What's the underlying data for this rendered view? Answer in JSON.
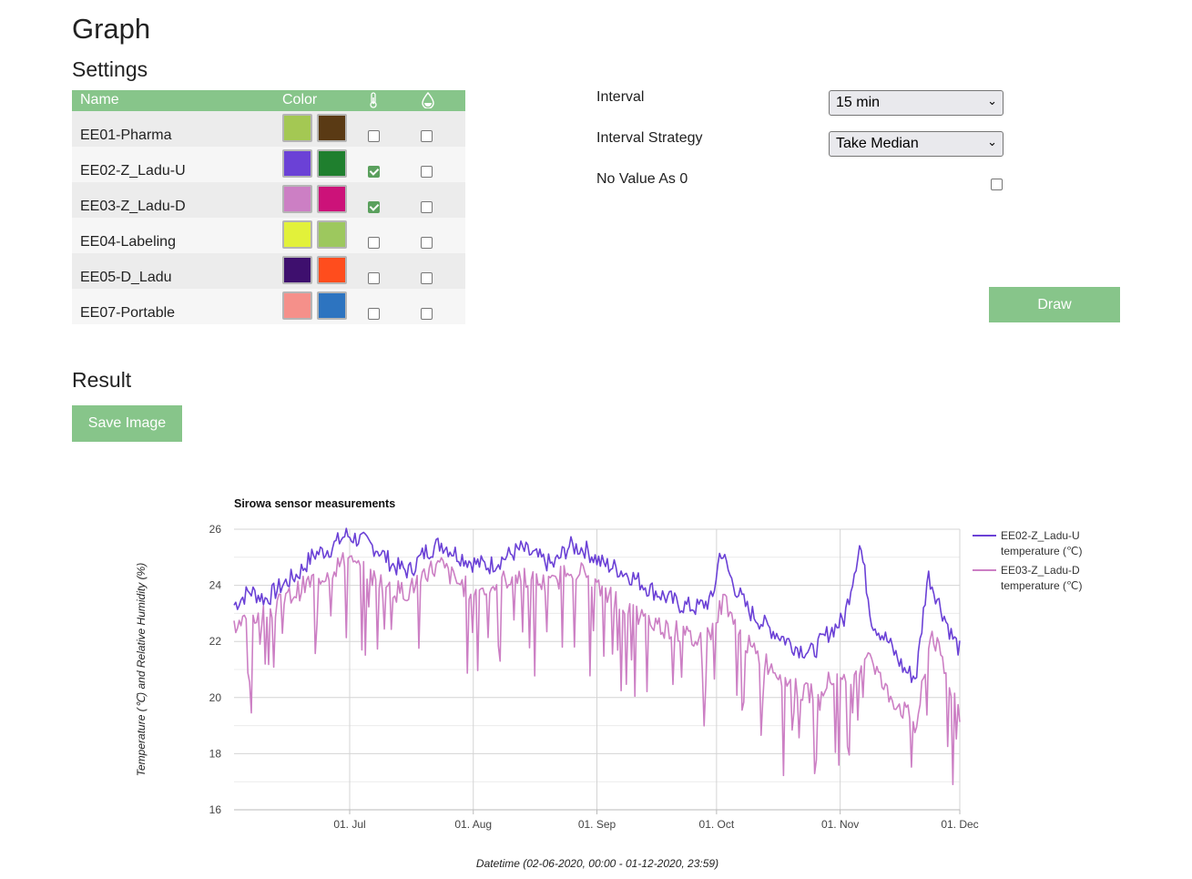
{
  "page": {
    "title": "Graph",
    "settings_heading": "Settings",
    "result_heading": "Result"
  },
  "table": {
    "headers": {
      "name": "Name",
      "color": "Color",
      "temp_icon": "thermometer-icon",
      "humidity_icon": "droplet-icon"
    },
    "rows": [
      {
        "name": "EE01-Pharma",
        "temp_color": "#a4c853",
        "hum_color": "#5a3a14",
        "temp_checked": false,
        "hum_checked": false
      },
      {
        "name": "EE02-Z_Ladu-U",
        "temp_color": "#6b41d6",
        "hum_color": "#1f7f2e",
        "temp_checked": true,
        "hum_checked": false
      },
      {
        "name": "EE03-Z_Ladu-D",
        "temp_color": "#cc7fc4",
        "hum_color": "#cc1279",
        "temp_checked": true,
        "hum_checked": false
      },
      {
        "name": "EE04-Labeling",
        "temp_color": "#e2f13a",
        "hum_color": "#9dc85e",
        "temp_checked": false,
        "hum_checked": false
      },
      {
        "name": "EE05-D_Ladu",
        "temp_color": "#3e0f6e",
        "hum_color": "#ff4d1d",
        "temp_checked": false,
        "hum_checked": false
      },
      {
        "name": "EE07-Portable",
        "temp_color": "#f5908a",
        "hum_color": "#2d74c0",
        "temp_checked": false,
        "hum_checked": false
      }
    ]
  },
  "form": {
    "interval_label": "Interval",
    "interval_value": "15 min",
    "strategy_label": "Interval Strategy",
    "strategy_value": "Take Median",
    "novalue_label": "No Value As 0",
    "novalue_checked": false,
    "draw_label": "Draw"
  },
  "save_label": "Save Image",
  "chart_data": {
    "type": "line",
    "title": "Sirowa sensor measurements",
    "xlabel": "Datetime (02-06-2020, 00:00 - 01-12-2020, 23:59)",
    "ylabel": "Temperature (℃) and Relative Humidity (%)",
    "x_ticks": [
      "01. Jul",
      "01. Aug",
      "01. Sep",
      "01. Oct",
      "01. Nov",
      "01. Dec"
    ],
    "x_tick_dates": [
      "2020-07-01",
      "2020-08-01",
      "2020-09-01",
      "2020-10-01",
      "2020-11-01",
      "2020-12-01"
    ],
    "xlim": [
      "2020-06-02",
      "2020-12-01"
    ],
    "ylim": [
      16,
      26
    ],
    "y_ticks": [
      16,
      18,
      20,
      22,
      24,
      26
    ],
    "grid": true,
    "legend_position": "right",
    "series": [
      {
        "name": "EE02-Z_Ladu-U temperature (℃)",
        "color": "#6b41d6",
        "points": [
          [
            "2020-06-02",
            23.3
          ],
          [
            "2020-06-06",
            23.8
          ],
          [
            "2020-06-10",
            23.5
          ],
          [
            "2020-06-14",
            24.0
          ],
          [
            "2020-06-18",
            24.4
          ],
          [
            "2020-06-22",
            25.1
          ],
          [
            "2020-06-26",
            25.3
          ],
          [
            "2020-06-30",
            25.8
          ],
          [
            "2020-07-04",
            25.6
          ],
          [
            "2020-07-08",
            25.3
          ],
          [
            "2020-07-12",
            24.7
          ],
          [
            "2020-07-16",
            24.5
          ],
          [
            "2020-07-20",
            25.2
          ],
          [
            "2020-07-24",
            25.5
          ],
          [
            "2020-07-28",
            25.1
          ],
          [
            "2020-08-01",
            24.8
          ],
          [
            "2020-08-05",
            24.7
          ],
          [
            "2020-08-09",
            25.0
          ],
          [
            "2020-08-13",
            25.3
          ],
          [
            "2020-08-17",
            25.0
          ],
          [
            "2020-08-21",
            24.7
          ],
          [
            "2020-08-25",
            25.4
          ],
          [
            "2020-08-29",
            25.3
          ],
          [
            "2020-09-02",
            24.8
          ],
          [
            "2020-09-06",
            24.6
          ],
          [
            "2020-09-10",
            24.3
          ],
          [
            "2020-09-14",
            23.9
          ],
          [
            "2020-09-18",
            23.6
          ],
          [
            "2020-09-22",
            23.3
          ],
          [
            "2020-09-26",
            23.2
          ],
          [
            "2020-09-30",
            23.5
          ],
          [
            "2020-10-02",
            25.3
          ],
          [
            "2020-10-05",
            24.1
          ],
          [
            "2020-10-09",
            23.1
          ],
          [
            "2020-10-13",
            22.6
          ],
          [
            "2020-10-17",
            22.2
          ],
          [
            "2020-10-21",
            21.8
          ],
          [
            "2020-10-25",
            21.6
          ],
          [
            "2020-10-29",
            22.3
          ],
          [
            "2020-11-02",
            22.8
          ],
          [
            "2020-11-06",
            25.5
          ],
          [
            "2020-11-09",
            22.7
          ],
          [
            "2020-11-13",
            22.0
          ],
          [
            "2020-11-17",
            21.0
          ],
          [
            "2020-11-20",
            20.7
          ],
          [
            "2020-11-23",
            24.4
          ],
          [
            "2020-11-26",
            23.3
          ],
          [
            "2020-11-29",
            22.2
          ],
          [
            "2020-12-01",
            21.7
          ]
        ]
      },
      {
        "name": "EE03-Z_Ladu-D temperature (℃)",
        "color": "#cc7fc4",
        "points": [
          [
            "2020-06-02",
            22.5
          ],
          [
            "2020-06-06",
            22.8
          ],
          [
            "2020-06-10",
            23.0
          ],
          [
            "2020-06-14",
            23.4
          ],
          [
            "2020-06-18",
            23.8
          ],
          [
            "2020-06-22",
            24.2
          ],
          [
            "2020-06-26",
            24.5
          ],
          [
            "2020-06-30",
            24.9
          ],
          [
            "2020-07-04",
            24.5
          ],
          [
            "2020-07-08",
            24.2
          ],
          [
            "2020-07-12",
            23.8
          ],
          [
            "2020-07-16",
            23.8
          ],
          [
            "2020-07-20",
            24.5
          ],
          [
            "2020-07-24",
            24.7
          ],
          [
            "2020-07-28",
            24.1
          ],
          [
            "2020-08-01",
            23.8
          ],
          [
            "2020-08-05",
            23.9
          ],
          [
            "2020-08-09",
            24.2
          ],
          [
            "2020-08-13",
            24.4
          ],
          [
            "2020-08-17",
            24.1
          ],
          [
            "2020-08-21",
            24.0
          ],
          [
            "2020-08-25",
            24.7
          ],
          [
            "2020-08-29",
            24.4
          ],
          [
            "2020-09-02",
            23.8
          ],
          [
            "2020-09-06",
            23.5
          ],
          [
            "2020-09-10",
            23.0
          ],
          [
            "2020-09-14",
            22.7
          ],
          [
            "2020-09-18",
            22.5
          ],
          [
            "2020-09-22",
            22.3
          ],
          [
            "2020-09-26",
            22.0
          ],
          [
            "2020-09-30",
            22.4
          ],
          [
            "2020-10-03",
            23.6
          ],
          [
            "2020-10-07",
            22.2
          ],
          [
            "2020-10-11",
            21.5
          ],
          [
            "2020-10-15",
            21.1
          ],
          [
            "2020-10-19",
            20.6
          ],
          [
            "2020-10-23",
            20.1
          ],
          [
            "2020-10-27",
            20.4
          ],
          [
            "2020-10-31",
            20.7
          ],
          [
            "2020-11-04",
            20.2
          ],
          [
            "2020-11-08",
            21.8
          ],
          [
            "2020-11-12",
            20.3
          ],
          [
            "2020-11-16",
            19.7
          ],
          [
            "2020-11-20",
            19.0
          ],
          [
            "2020-11-24",
            22.4
          ],
          [
            "2020-11-27",
            21.0
          ],
          [
            "2020-12-01",
            19.5
          ]
        ]
      }
    ]
  }
}
